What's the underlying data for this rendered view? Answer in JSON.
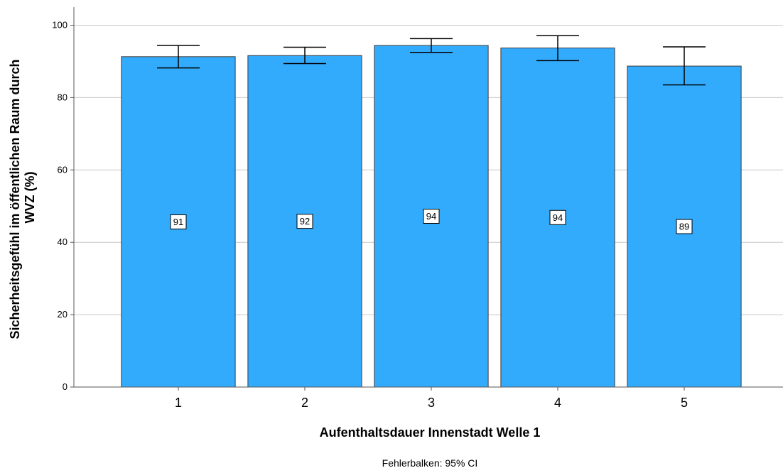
{
  "chart_data": {
    "type": "bar",
    "categories": [
      "1",
      "2",
      "3",
      "4",
      "5"
    ],
    "values": [
      91.3,
      91.6,
      94.4,
      93.7,
      88.7
    ],
    "data_labels": [
      "91",
      "92",
      "94",
      "94",
      "89"
    ],
    "ci_lower": [
      88.2,
      89.4,
      92.5,
      90.2,
      83.5
    ],
    "ci_upper": [
      94.4,
      93.9,
      96.3,
      97.1,
      94.0
    ],
    "title": "",
    "xlabel": "Aufenthaltsdauer Innenstadt Welle 1",
    "ylabel_lines": [
      "Sicherheitsgefühl im öffentlichen Raum durch",
      "WVZ (%)"
    ],
    "ylim": [
      0,
      105
    ],
    "yticks": [
      0,
      20,
      40,
      60,
      80,
      100
    ],
    "grid": true,
    "footnote": "Fehlerbalken: 95% CI",
    "colors": {
      "bar": "#33abfd",
      "bar_edge": "#3a3a3a",
      "grid": "#c8c8c8",
      "axis": "#555555",
      "errorbar": "#000000"
    }
  }
}
